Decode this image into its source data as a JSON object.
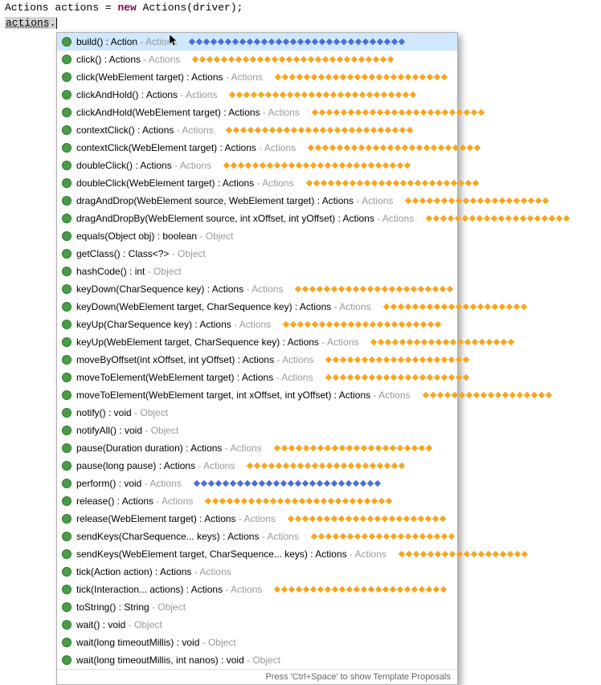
{
  "editor": {
    "line1_type": "Actions",
    "line1_var": "actions",
    "line1_eq": " = ",
    "line1_new": "new",
    "line1_call": " Actions(driver);",
    "line2_var": "actions",
    "line2_dot": "."
  },
  "popup": {
    "footer": "Press 'Ctrl+Space' to show Template Proposals",
    "dot_color_orange": "#f5a623",
    "dot_color_blue": "#4a6fd4",
    "items": [
      {
        "sig": "build() : Action",
        "origin": "Actions",
        "selected": true,
        "dots": 30,
        "dotcolor": "blue",
        "dotinside": true
      },
      {
        "sig": "click() : Actions",
        "origin": "Actions",
        "dots": 28,
        "dotcolor": "orange",
        "dotinside": true
      },
      {
        "sig": "click(WebElement target) : Actions",
        "origin": "Actions",
        "dots": 24,
        "dotcolor": "orange",
        "dotinside": true
      },
      {
        "sig": "clickAndHold() : Actions",
        "origin": "Actions",
        "dots": 26,
        "dotcolor": "orange",
        "dotinside": true
      },
      {
        "sig": "clickAndHold(WebElement target) : Actions",
        "origin": "Actions",
        "dots": 24,
        "dotcolor": "orange",
        "dotinside": false,
        "overflow": 40
      },
      {
        "sig": "contextClick() : Actions",
        "origin": "Actions",
        "dots": 26,
        "dotcolor": "orange",
        "dotinside": true
      },
      {
        "sig": "contextClick(WebElement target) : Actions",
        "origin": "Actions",
        "dots": 24,
        "dotcolor": "orange",
        "dotinside": false,
        "overflow": 40
      },
      {
        "sig": "doubleClick() : Actions",
        "origin": "Actions",
        "dots": 26,
        "dotcolor": "orange",
        "dotinside": true
      },
      {
        "sig": "doubleClick(WebElement target) : Actions",
        "origin": "Actions",
        "dots": 24,
        "dotcolor": "orange",
        "dotinside": false,
        "overflow": 40
      },
      {
        "sig": "dragAndDrop(WebElement source, WebElement target) : Actions",
        "origin": "Actions",
        "dots": 20,
        "dotcolor": "orange",
        "dotinside": false,
        "overflow": 120
      },
      {
        "sig": "dragAndDropBy(WebElement source, int xOffset, int yOffset) : Actions",
        "origin": "Actions",
        "dots": 20,
        "dotcolor": "orange",
        "dotinside": false,
        "overflow": 200
      },
      {
        "sig": "equals(Object obj) : boolean",
        "origin": "Object",
        "dots": 0
      },
      {
        "sig": "getClass() : Class<?>",
        "origin": "Object",
        "dots": 0
      },
      {
        "sig": "hashCode() : int",
        "origin": "Object",
        "dots": 0
      },
      {
        "sig": "keyDown(CharSequence key) : Actions",
        "origin": "Actions",
        "dots": 22,
        "dotcolor": "orange",
        "dotinside": false,
        "overflow": 20
      },
      {
        "sig": "keyDown(WebElement target, CharSequence key) : Actions",
        "origin": "Actions",
        "dots": 20,
        "dotcolor": "orange",
        "dotinside": false,
        "overflow": 100
      },
      {
        "sig": "keyUp(CharSequence key) : Actions",
        "origin": "Actions",
        "dots": 22,
        "dotcolor": "orange",
        "dotinside": false,
        "overflow": 10
      },
      {
        "sig": "keyUp(WebElement target, CharSequence key) : Actions",
        "origin": "Actions",
        "dots": 20,
        "dotcolor": "orange",
        "dotinside": false,
        "overflow": 90
      },
      {
        "sig": "moveByOffset(int xOffset, int yOffset) : Actions",
        "origin": "Actions",
        "dots": 20,
        "dotcolor": "orange",
        "dotinside": false,
        "overflow": 70
      },
      {
        "sig": "moveToElement(WebElement target) : Actions",
        "origin": "Actions",
        "dots": 20,
        "dotcolor": "orange",
        "dotinside": false,
        "overflow": 60
      },
      {
        "sig": "moveToElement(WebElement target, int xOffset, int yOffset) : Actions",
        "origin": "Actions",
        "dots": 18,
        "dotcolor": "orange",
        "dotinside": false,
        "overflow": 200
      },
      {
        "sig": "notify() : void",
        "origin": "Object",
        "dots": 0
      },
      {
        "sig": "notifyAll() : void",
        "origin": "Object",
        "dots": 0
      },
      {
        "sig": "pause(Duration duration) : Actions",
        "origin": "Actions",
        "dots": 22,
        "dotcolor": "orange",
        "dotinside": true
      },
      {
        "sig": "pause(long pause) : Actions",
        "origin": "Actions",
        "dots": 22,
        "dotcolor": "orange",
        "dotinside": true
      },
      {
        "sig": "perform() : void",
        "origin": "Actions",
        "dots": 26,
        "dotcolor": "blue",
        "dotinside": true
      },
      {
        "sig": "release() : Actions",
        "origin": "Actions",
        "dots": 26,
        "dotcolor": "orange",
        "dotinside": true
      },
      {
        "sig": "release(WebElement target) : Actions",
        "origin": "Actions",
        "dots": 22,
        "dotcolor": "orange",
        "dotinside": false,
        "overflow": 30
      },
      {
        "sig": "sendKeys(CharSequence... keys) : Actions",
        "origin": "Actions",
        "dots": 20,
        "dotcolor": "orange",
        "dotinside": false,
        "overflow": 50
      },
      {
        "sig": "sendKeys(WebElement target, CharSequence... keys) : Actions",
        "origin": "Actions",
        "dots": 18,
        "dotcolor": "orange",
        "dotinside": false,
        "overflow": 150
      },
      {
        "sig": "tick(Action action) : Actions",
        "origin": "Actions",
        "dots": 0
      },
      {
        "sig": "tick(Interaction... actions) : Actions",
        "origin": "Actions",
        "dots": 24,
        "dotcolor": "orange",
        "dotinside": true
      },
      {
        "sig": "toString() : String",
        "origin": "Object",
        "dots": 0
      },
      {
        "sig": "wait() : void",
        "origin": "Object",
        "dots": 0
      },
      {
        "sig": "wait(long timeoutMillis) : void",
        "origin": "Object",
        "dots": 0
      },
      {
        "sig": "wait(long timeoutMillis, int nanos) : void",
        "origin": "Object",
        "dots": 0
      }
    ]
  }
}
